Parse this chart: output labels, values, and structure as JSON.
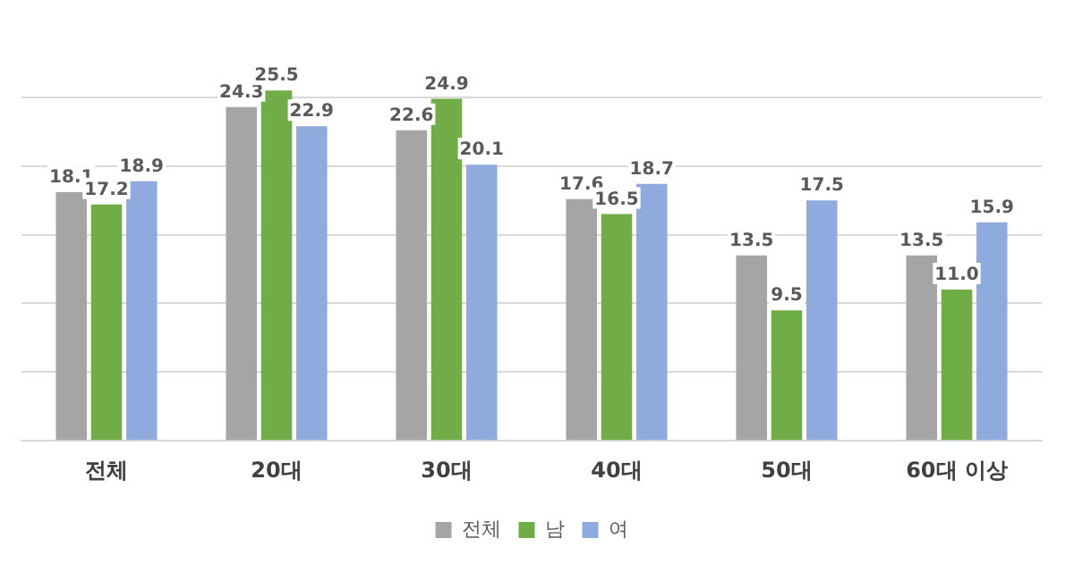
{
  "chart_data": {
    "type": "bar",
    "categories": [
      "전체",
      "20대",
      "30대",
      "40대",
      "50대",
      "60대 이상"
    ],
    "series": [
      {
        "name": "전체",
        "color": "#a5a5a5",
        "values": [
          18.1,
          24.3,
          22.6,
          17.6,
          13.5,
          13.5
        ],
        "value_labels": [
          "18.1",
          "24.3",
          "22.6",
          "17.6",
          "13.5",
          "13.5"
        ]
      },
      {
        "name": "남",
        "color": "#70ad47",
        "values": [
          17.2,
          25.5,
          24.9,
          16.5,
          9.5,
          11.0
        ],
        "value_labels": [
          "17.2",
          "25.5",
          "24.9",
          "16.5",
          "9.5",
          "11.0"
        ]
      },
      {
        "name": "여",
        "color": "#8faadc",
        "values": [
          18.9,
          22.9,
          20.1,
          18.7,
          17.5,
          15.9
        ],
        "value_labels": [
          "18.9",
          "22.9",
          "20.1",
          "18.7",
          "17.5",
          "15.9"
        ]
      }
    ],
    "yticks": [
      {
        "value": 0,
        "label": null
      },
      {
        "value": 5,
        "label": null
      },
      {
        "value": 10,
        "label": null
      },
      {
        "value": 15,
        "label": null
      },
      {
        "value": 20,
        "label": null
      },
      {
        "value": 25,
        "label": null
      }
    ],
    "tick_labels": "x",
    "grid": "y",
    "legend": "bottom"
  }
}
